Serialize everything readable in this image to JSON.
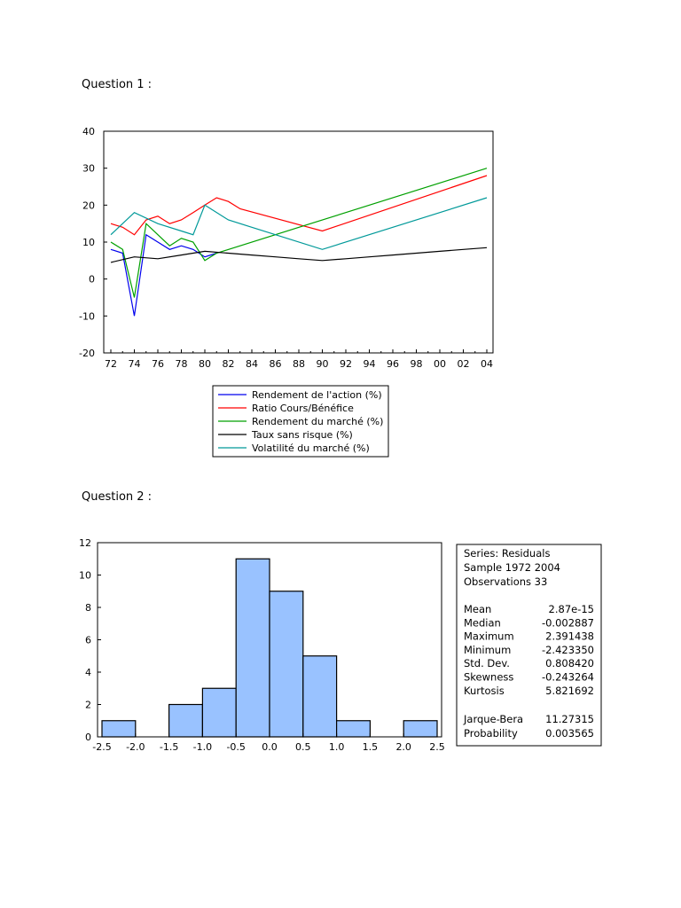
{
  "questions": {
    "q1_label": "Question 1 :",
    "q2_label": "Question 2 :"
  },
  "chart_data": [
    {
      "type": "line",
      "title": "",
      "xlabel": "",
      "ylabel": "",
      "xlim": [
        1972,
        2004
      ],
      "ylim": [
        -20,
        40
      ],
      "yticks": [
        40,
        30,
        20,
        10,
        0,
        -10,
        -20
      ],
      "yticklabels": [
        "40",
        "30",
        "20",
        "10",
        "0",
        "-10",
        "-20"
      ],
      "xticks": [
        1972,
        1974,
        1976,
        1978,
        1980,
        1982,
        1984,
        1986,
        1988,
        1990,
        1992,
        1994,
        1996,
        1998,
        2000,
        2002,
        2004
      ],
      "xticklabels": [
        "72",
        "74",
        "76",
        "78",
        "80",
        "82",
        "84",
        "86",
        "88",
        "90",
        "92",
        "94",
        "96",
        "98",
        "00",
        "02",
        "04"
      ],
      "series": [
        {
          "name": "Rendement de l'action (%)",
          "color": "#0000ee",
          "x": [
            1972,
            1973,
            1974,
            1975,
            1976,
            1977,
            1978,
            1979,
            1980,
            1981
          ],
          "y": [
            8,
            7,
            -10,
            12,
            10,
            8,
            9,
            8,
            6,
            7
          ]
        },
        {
          "name": "Ratio Cours/Bénéfice",
          "color": "#ff0000",
          "x": [
            1972,
            1973,
            1974,
            1975,
            1976,
            1977,
            1978,
            1979,
            1980,
            1981,
            1982,
            1983,
            1990,
            2004
          ],
          "y": [
            15,
            14,
            12,
            16,
            17,
            15,
            16,
            18,
            20,
            22,
            21,
            19,
            13,
            28
          ]
        },
        {
          "name": "Rendement du marché (%)",
          "color": "#00a000",
          "x": [
            1972,
            1973,
            1974,
            1975,
            1976,
            1977,
            1978,
            1979,
            1980,
            1981,
            2004
          ],
          "y": [
            10,
            8,
            -5,
            15,
            12,
            9,
            11,
            10,
            5,
            7,
            30
          ]
        },
        {
          "name": "Taux sans risque (%)",
          "color": "#000000",
          "x": [
            1972,
            1974,
            1976,
            1978,
            1980,
            1982,
            1984,
            1986,
            1988,
            1990,
            1992,
            1994,
            1996,
            1998,
            2000,
            2002,
            2004
          ],
          "y": [
            4.5,
            6,
            5.5,
            6.5,
            7.5,
            7,
            6.5,
            6,
            5.5,
            5,
            5.5,
            6,
            6.5,
            7,
            7.5,
            8,
            8.5
          ]
        },
        {
          "name": "Volatilité du marché (%)",
          "color": "#009999",
          "x": [
            1972,
            1974,
            1976,
            1978,
            1979,
            1980,
            1982,
            1990,
            2004
          ],
          "y": [
            12,
            18,
            15,
            13,
            12,
            20,
            16,
            8,
            22
          ]
        }
      ]
    },
    {
      "type": "bar",
      "title": "",
      "xlabel": "",
      "ylabel": "",
      "bins": [
        [
          -2.5,
          -2.0
        ],
        [
          -2.0,
          -1.5
        ],
        [
          -1.5,
          -1.0
        ],
        [
          -1.0,
          -0.5
        ],
        [
          -0.5,
          0.0
        ],
        [
          0.0,
          0.5
        ],
        [
          0.5,
          1.0
        ],
        [
          1.0,
          1.5
        ],
        [
          1.5,
          2.0
        ],
        [
          2.0,
          2.5
        ]
      ],
      "values": [
        1,
        0,
        2,
        3,
        11,
        9,
        5,
        1,
        0,
        1
      ],
      "xlim": [
        -2.5,
        2.5
      ],
      "ylim": [
        0,
        12
      ],
      "yticks": [
        0,
        2,
        4,
        6,
        8,
        10,
        12
      ],
      "yticklabels": [
        "0",
        "2",
        "4",
        "6",
        "8",
        "10",
        "12"
      ],
      "xticks": [
        -2.5,
        -2.0,
        -1.5,
        -1.0,
        -0.5,
        0.0,
        0.5,
        1.0,
        1.5,
        2.0,
        2.5
      ],
      "xticklabels": [
        "-2.5",
        "-2.0",
        "-1.5",
        "-1.0",
        "-0.5",
        "0.0",
        "0.5",
        "1.0",
        "1.5",
        "2.0",
        "2.5"
      ],
      "bar_color": "#99c2ff"
    }
  ],
  "stats": {
    "header": [
      "Series: Residuals",
      "Sample 1972 2004",
      "Observations 33"
    ],
    "rows": [
      {
        "label": "Mean",
        "value": "2.87e-15"
      },
      {
        "label": "Median",
        "value": "-0.002887"
      },
      {
        "label": "Maximum",
        "value": "2.391438"
      },
      {
        "label": "Minimum",
        "value": "-2.423350"
      },
      {
        "label": "Std. Dev.",
        "value": "0.808420"
      },
      {
        "label": "Skewness",
        "value": "-0.243264"
      },
      {
        "label": "Kurtosis",
        "value": "5.821692"
      }
    ],
    "jb_rows": [
      {
        "label": "Jarque-Bera",
        "value": "11.27315"
      },
      {
        "label": "Probability",
        "value": "0.003565"
      }
    ]
  }
}
